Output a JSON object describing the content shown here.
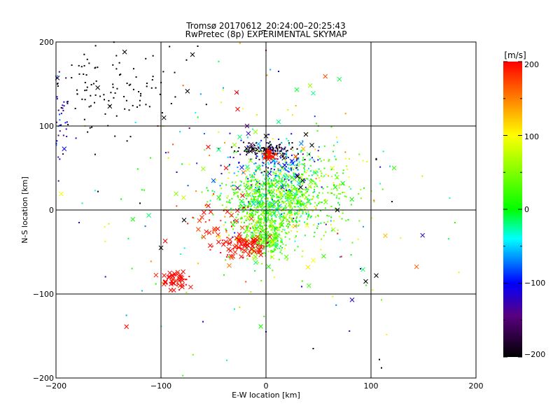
{
  "chart_data": {
    "type": "scatter",
    "title": "Tromsø 20170612_20:24:00–20:25:43",
    "subtitle": "RwPretec (8p) EXPERIMENTAL SKYMAP",
    "xlabel": "E-W location [km]",
    "ylabel": "N-S location [km]",
    "xlim": [
      -200,
      200
    ],
    "ylim": [
      -200,
      200
    ],
    "xticks": [
      "−200",
      "−100",
      "0",
      "100",
      "200"
    ],
    "yticks": [
      "200",
      "100",
      "0",
      "−100",
      "−200"
    ],
    "grid": true,
    "colorbar": {
      "label": "[m/s]",
      "range": [
        -200,
        200
      ],
      "ticks": [
        "200",
        "100",
        "0",
        "−100",
        "−200"
      ],
      "colormap": "black-purple-blue-cyan-green-yellow-red"
    },
    "marker_types": [
      "dot",
      "x"
    ],
    "clusters": [
      {
        "x": 5,
        "y": 15,
        "sx": 22,
        "sy": 18,
        "n": 700,
        "v": 20,
        "vs": 40,
        "x_frac": 0.1
      },
      {
        "x": 0,
        "y": -30,
        "sx": 12,
        "sy": 14,
        "n": 350,
        "v": 40,
        "vs": 30,
        "x_frac": 0.12
      },
      {
        "x": 10,
        "y": 55,
        "sx": 20,
        "sy": 15,
        "n": 180,
        "v": -80,
        "vs": 40,
        "x_frac": 0.1
      },
      {
        "x": 0,
        "y": 72,
        "sx": 15,
        "sy": 4,
        "n": 120,
        "v": -190,
        "vs": 10,
        "x_frac": 0.1
      },
      {
        "x": 2,
        "y": 65,
        "sx": 3,
        "sy": 3,
        "n": 40,
        "v": 190,
        "vs": 5,
        "x_frac": 0.6
      },
      {
        "x": 40,
        "y": 20,
        "sx": 30,
        "sy": 25,
        "n": 300,
        "v": 40,
        "vs": 40,
        "x_frac": 0.03
      },
      {
        "x": -20,
        "y": -45,
        "sx": 10,
        "sy": 6,
        "n": 80,
        "v": 200,
        "vs": 10,
        "x_frac": 0.5
      },
      {
        "x": -87,
        "y": -85,
        "sx": 6,
        "sy": 6,
        "n": 50,
        "v": 200,
        "vs": 10,
        "x_frac": 0.7
      },
      {
        "x": -40,
        "y": -20,
        "sx": 15,
        "sy": 15,
        "n": 50,
        "v": 190,
        "vs": 15,
        "x_frac": 0.6
      },
      {
        "x": -150,
        "y": 145,
        "sx": 35,
        "sy": 25,
        "n": 120,
        "v": -200,
        "vs": 5,
        "x_frac": 0.05
      },
      {
        "x": -195,
        "y": 110,
        "sx": 4,
        "sy": 35,
        "n": 40,
        "v": -130,
        "vs": 40,
        "x_frac": 0.05
      },
      {
        "x": 0,
        "y": 0,
        "sx": 80,
        "sy": 80,
        "n": 180,
        "v": 20,
        "vs": 90,
        "x_frac": 0.15
      }
    ],
    "points": [
      {
        "x": 50,
        "y": 100,
        "v": 0,
        "m": "dot"
      },
      {
        "x": 48,
        "y": 103,
        "v": 20,
        "m": "dot"
      },
      {
        "x": 42,
        "y": 148,
        "v": 60,
        "m": "x"
      },
      {
        "x": 45,
        "y": 139,
        "v": -20,
        "m": "x"
      },
      {
        "x": 12,
        "y": 105,
        "v": -20,
        "m": "x"
      },
      {
        "x": -28,
        "y": 140,
        "v": 200,
        "m": "x"
      },
      {
        "x": -27,
        "y": 120,
        "v": 200,
        "m": "x"
      },
      {
        "x": -18,
        "y": 100,
        "v": -150,
        "m": "x"
      },
      {
        "x": 0,
        "y": 190,
        "v": 200,
        "m": "dot"
      },
      {
        "x": 12,
        "y": 165,
        "v": -100,
        "m": "dot"
      },
      {
        "x": 95,
        "y": -85,
        "v": -200,
        "m": "x"
      },
      {
        "x": 105,
        "y": -78,
        "v": -200,
        "m": "x"
      },
      {
        "x": 90,
        "y": -70,
        "v": -120,
        "m": "dot"
      },
      {
        "x": 82,
        "y": -107,
        "v": -120,
        "m": "x"
      },
      {
        "x": 110,
        "y": -107,
        "v": 40,
        "m": "dot"
      },
      {
        "x": 45,
        "y": -165,
        "v": -200,
        "m": "dot"
      },
      {
        "x": 108,
        "y": -178,
        "v": -200,
        "m": "dot"
      },
      {
        "x": 110,
        "y": -188,
        "v": -200,
        "m": "dot"
      },
      {
        "x": 0,
        "y": -145,
        "v": -100,
        "m": "dot"
      },
      {
        "x": -60,
        "y": -133,
        "v": -100,
        "m": "dot"
      },
      {
        "x": -30,
        "y": -118,
        "v": -20,
        "m": "dot"
      },
      {
        "x": -100,
        "y": -45,
        "v": -200,
        "m": "x"
      },
      {
        "x": -96,
        "y": -37,
        "v": 200,
        "m": "x"
      },
      {
        "x": -78,
        "y": -12,
        "v": -200,
        "m": "x"
      },
      {
        "x": -120,
        "y": 8,
        "v": -200,
        "m": "dot"
      },
      {
        "x": -138,
        "y": 13,
        "v": 0,
        "m": "dot"
      },
      {
        "x": -178,
        "y": -15,
        "v": -120,
        "m": "dot"
      },
      {
        "x": -175,
        "y": 8,
        "v": -20,
        "m": "dot"
      },
      {
        "x": -160,
        "y": 22,
        "v": -200,
        "m": "dot"
      },
      {
        "x": -103,
        "y": 100,
        "v": 200,
        "m": "dot"
      },
      {
        "x": -110,
        "y": 62,
        "v": 20,
        "m": "dot"
      },
      {
        "x": -85,
        "y": 45,
        "v": -120,
        "m": "dot"
      },
      {
        "x": -70,
        "y": 185,
        "v": -200,
        "m": "x"
      },
      {
        "x": -65,
        "y": 195,
        "v": -200,
        "m": "dot"
      },
      {
        "x": 105,
        "y": 61,
        "v": -200,
        "m": "dot"
      },
      {
        "x": 122,
        "y": 50,
        "v": 20,
        "m": "x"
      },
      {
        "x": 118,
        "y": 52,
        "v": -50,
        "m": "dot"
      },
      {
        "x": 180,
        "y": -15,
        "v": 20,
        "m": "dot"
      },
      {
        "x": 120,
        "y": 10,
        "v": -200,
        "m": "dot"
      },
      {
        "x": 68,
        "y": 0,
        "v": -200,
        "m": "x"
      },
      {
        "x": 55,
        "y": -55,
        "v": 20,
        "m": "x"
      },
      {
        "x": 45,
        "y": -60,
        "v": 100,
        "m": "x"
      },
      {
        "x": 40,
        "y": -68,
        "v": 110,
        "m": "x"
      },
      {
        "x": 38,
        "y": 90,
        "v": -200,
        "m": "x"
      },
      {
        "x": 25,
        "y": 80,
        "v": -200,
        "m": "dot"
      },
      {
        "x": 30,
        "y": 40,
        "v": -200,
        "m": "x"
      },
      {
        "x": 35,
        "y": 35,
        "v": -200,
        "m": "x"
      },
      {
        "x": 33,
        "y": 27,
        "v": -200,
        "m": "x"
      },
      {
        "x": -50,
        "y": 35,
        "v": -80,
        "m": "x"
      },
      {
        "x": -45,
        "y": 15,
        "v": 20,
        "m": "x"
      },
      {
        "x": -55,
        "y": 5,
        "v": 200,
        "m": "x"
      },
      {
        "x": -38,
        "y": 50,
        "v": 200,
        "m": "x"
      },
      {
        "x": -55,
        "y": 75,
        "v": 200,
        "m": "x"
      },
      {
        "x": -45,
        "y": 72,
        "v": -20,
        "m": "x"
      },
      {
        "x": -25,
        "y": 87,
        "v": -20,
        "m": "x"
      },
      {
        "x": -10,
        "y": 93,
        "v": 60,
        "m": "x"
      },
      {
        "x": 0,
        "y": 88,
        "v": -200,
        "m": "x"
      },
      {
        "x": 37,
        "y": 60,
        "v": -200,
        "m": "dot"
      },
      {
        "x": 105,
        "y": 60,
        "v": -200,
        "m": "dot"
      }
    ]
  }
}
